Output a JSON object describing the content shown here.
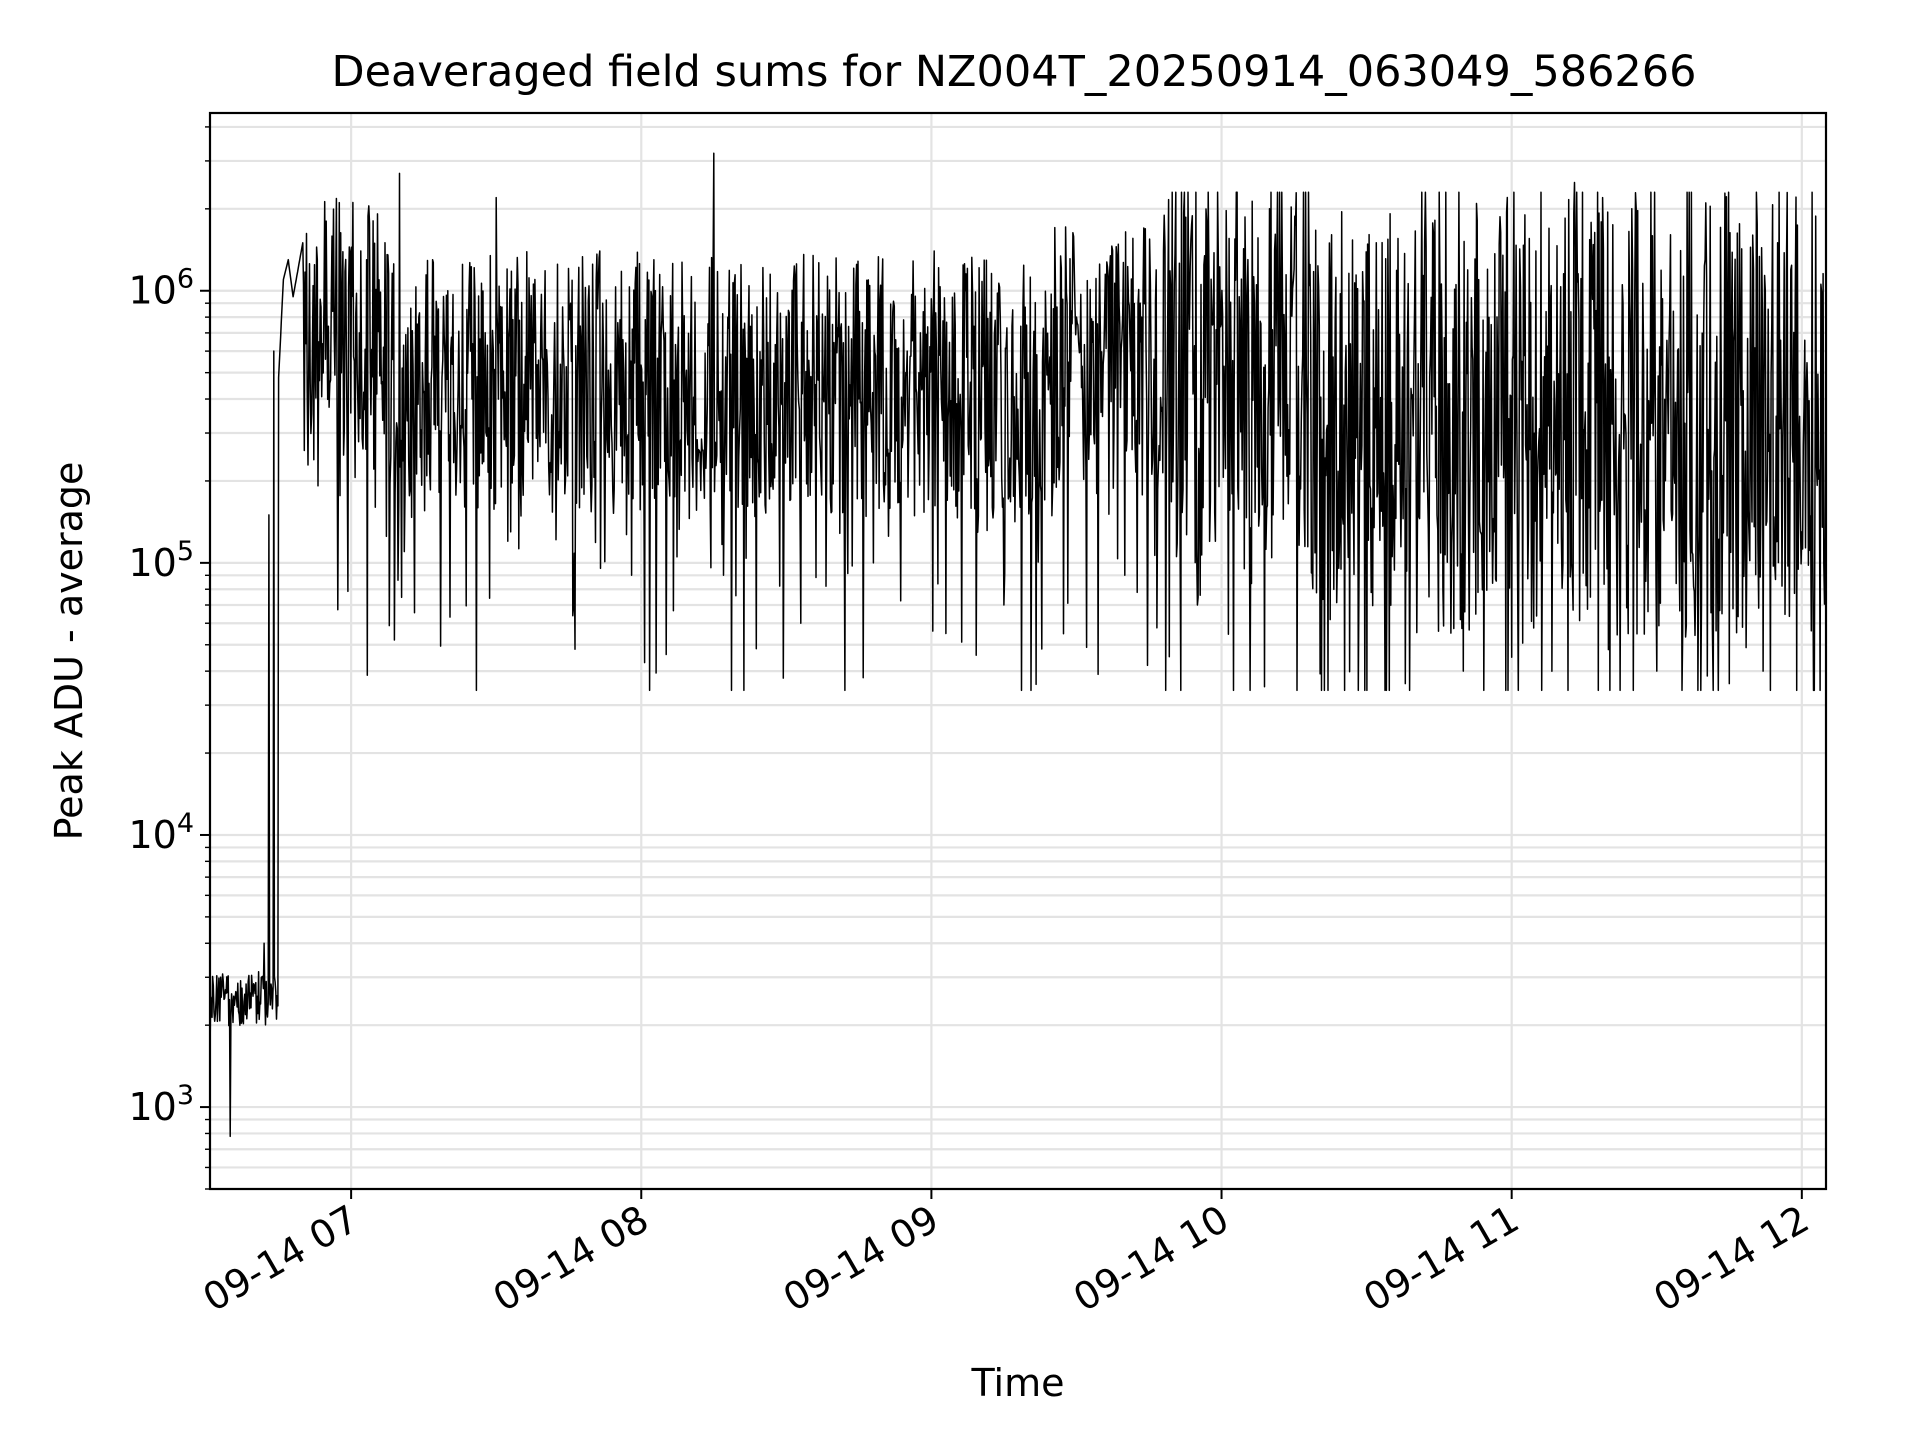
{
  "chart_data": {
    "type": "line",
    "title": "Deaveraged field sums for NZ004T_20250914_063049_586266",
    "xlabel": "Time",
    "ylabel": "Peak ADU - average",
    "x_axis": {
      "kind": "time",
      "range": [
        "2025-09-14 06:30:49",
        "2025-09-14 12:05:00"
      ],
      "ticks": [
        "09-14 07",
        "09-14 08",
        "09-14 09",
        "09-14 10",
        "09-14 11",
        "09-14 12"
      ],
      "tick_times": [
        "2025-09-14 07:00",
        "2025-09-14 08:00",
        "2025-09-14 09:00",
        "2025-09-14 10:00",
        "2025-09-14 11:00",
        "2025-09-14 12:00"
      ],
      "tick_rotation_deg": 30
    },
    "y_axis": {
      "scale": "log",
      "range": [
        500,
        4500000
      ],
      "ticks": [
        {
          "base": "10",
          "exp": "3"
        },
        {
          "base": "10",
          "exp": "4"
        },
        {
          "base": "10",
          "exp": "5"
        },
        {
          "base": "10",
          "exp": "6"
        }
      ],
      "tick_values": [
        1000,
        10000,
        100000,
        1000000
      ]
    },
    "grid": true,
    "series": [
      {
        "color": "#000000",
        "x": [
          "2025-09-14 06:30:49",
          "2025-09-14 06:31:30",
          "2025-09-14 06:32:30",
          "2025-09-14 06:33:00",
          "2025-09-14 06:34:00",
          "2025-09-14 06:35:00",
          "2025-09-14 06:36:00",
          "2025-09-14 06:37:00",
          "2025-09-14 06:38:00",
          "2025-09-14 06:39:00",
          "2025-09-14 06:40:00",
          "2025-09-14 06:41:00",
          "2025-09-14 06:42:00",
          "2025-09-14 06:43:00",
          "2025-09-14 06:44:00",
          "2025-09-14 06:45:00",
          "2025-09-14 06:46:00",
          "2025-09-14 06:47:00",
          "2025-09-14 06:48:00",
          "2025-09-14 06:50:00",
          "2025-09-14 06:52:00",
          "2025-09-14 06:53:00",
          "2025-09-14 06:55:00",
          "2025-09-14 06:58:00",
          "2025-09-14 07:02:00",
          "2025-09-14 07:05:00",
          "2025-09-14 07:07:00",
          "2025-09-14 07:10:00",
          "2025-09-14 07:11:00",
          "2025-09-14 07:14:00",
          "2025-09-14 07:20:00",
          "2025-09-14 07:25:00",
          "2025-09-14 07:30:00",
          "2025-09-14 07:33:00",
          "2025-09-14 07:38:00",
          "2025-09-14 07:46:00",
          "2025-09-14 07:48:00",
          "2025-09-14 07:55:00",
          "2025-09-14 07:58:00",
          "2025-09-14 08:05:00",
          "2025-09-14 08:15:00",
          "2025-09-14 08:17:00",
          "2025-09-14 08:25:00",
          "2025-09-14 08:33:00",
          "2025-09-14 08:40:00",
          "2025-09-14 08:48:00",
          "2025-09-14 08:55:00",
          "2025-09-14 09:03:00",
          "2025-09-14 09:07:00",
          "2025-09-14 09:15:00",
          "2025-09-14 09:20:00",
          "2025-09-14 09:30:00",
          "2025-09-14 09:40:00",
          "2025-09-14 09:48:00",
          "2025-09-14 09:55:00",
          "2025-09-14 10:05:00",
          "2025-09-14 10:15:00",
          "2025-09-14 10:25:00",
          "2025-09-14 10:32:00",
          "2025-09-14 10:38:00",
          "2025-09-14 10:42:00",
          "2025-09-14 10:50:00",
          "2025-09-14 10:55:00",
          "2025-09-14 11:00:00",
          "2025-09-14 11:05:00",
          "2025-09-14 11:13:00",
          "2025-09-14 11:20:00",
          "2025-09-14 11:25:00",
          "2025-09-14 11:30:00",
          "2025-09-14 11:40:00",
          "2025-09-14 11:45:00",
          "2025-09-14 11:50:00",
          "2025-09-14 11:52:00",
          "2025-09-14 11:55:00",
          "2025-09-14 12:00:00",
          "2025-09-14 12:05:00"
        ],
        "y": [
          1600,
          2800,
          2500,
          3000,
          2700,
          780,
          2500,
          2000,
          2600,
          2300,
          2800,
          2100,
          4000,
          150000,
          600000,
          480000,
          1100000,
          1300000,
          950000,
          1500000,
          600000,
          1300000,
          800000,
          500000,
          1400000,
          160000,
          1500000,
          2700000,
          110000,
          800000,
          1000000,
          400000,
          2200000,
          130000,
          1100000,
          70000,
          800000,
          500000,
          90000,
          700000,
          3200000,
          90000,
          450000,
          60000,
          500000,
          100000,
          600000,
          55000,
          1000000,
          70000,
          500000,
          800000,
          90000,
          1400000,
          70000,
          1000000,
          1200000,
          150000,
          1500000,
          36000,
          1500000,
          40000,
          1200000,
          45000,
          1400000,
          2500000,
          48000,
          1200000,
          40000,
          1300000,
          36000,
          1200000,
          40000,
          1500000,
          130000,
          500000
        ]
      }
    ]
  }
}
